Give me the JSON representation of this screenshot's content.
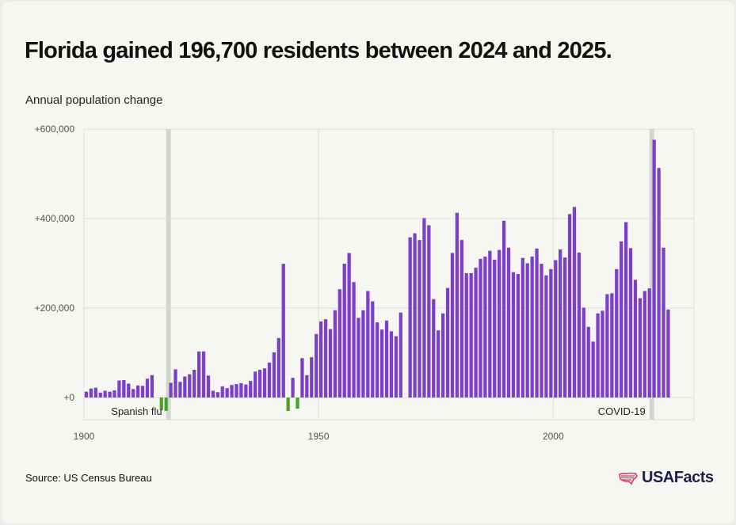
{
  "title": "Florida gained 196,700 residents between 2024 and 2025.",
  "source": "Source: US Census Bureau",
  "brand": {
    "name": "USAFacts",
    "logo_icon": "us-map-stripes-icon",
    "logo_color": "#d63a6a",
    "text_color": "#1e1e4a"
  },
  "chart_data": {
    "type": "bar",
    "title": "Florida gained 196,700 residents between 2024 and 2025.",
    "ylabel": "Annual population change",
    "xlabel": "",
    "ylim": [
      -50000,
      600000
    ],
    "xlim": [
      1900,
      2030
    ],
    "y_ticks": [
      0,
      200000,
      400000,
      600000
    ],
    "y_tick_labels": [
      "+0",
      "+200,000",
      "+400,000",
      "+600,000"
    ],
    "x_ticks": [
      1900,
      1950,
      2000
    ],
    "x_tick_labels": [
      "1900",
      "1950",
      "2000"
    ],
    "grid": true,
    "colors": {
      "positive": "#7b3fc8",
      "negative": "#4aa02c",
      "highlight_band": "#d4d4d0",
      "grid": "#dddddd"
    },
    "annotations": [
      {
        "label": "Spanish flu",
        "year": 1918
      },
      {
        "label": "COVID-19",
        "year": 2021
      }
    ],
    "years": [
      1901,
      1902,
      1903,
      1904,
      1905,
      1906,
      1907,
      1908,
      1909,
      1910,
      1911,
      1912,
      1913,
      1914,
      1915,
      1916,
      1917,
      1918,
      1919,
      1920,
      1921,
      1922,
      1923,
      1924,
      1925,
      1926,
      1927,
      1928,
      1929,
      1930,
      1931,
      1932,
      1933,
      1934,
      1935,
      1936,
      1937,
      1938,
      1939,
      1940,
      1941,
      1942,
      1943,
      1944,
      1945,
      1946,
      1947,
      1948,
      1949,
      1950,
      1951,
      1952,
      1953,
      1954,
      1955,
      1956,
      1957,
      1958,
      1959,
      1960,
      1961,
      1962,
      1963,
      1964,
      1965,
      1966,
      1967,
      1968,
      1969,
      1970,
      1971,
      1972,
      1973,
      1974,
      1975,
      1976,
      1977,
      1978,
      1979,
      1980,
      1981,
      1982,
      1983,
      1984,
      1985,
      1986,
      1987,
      1988,
      1989,
      1990,
      1991,
      1992,
      1993,
      1994,
      1995,
      1996,
      1997,
      1998,
      1999,
      2000,
      2001,
      2002,
      2003,
      2004,
      2005,
      2006,
      2007,
      2008,
      2009,
      2010,
      2011,
      2012,
      2013,
      2014,
      2015,
      2016,
      2017,
      2018,
      2019,
      2020,
      2021,
      2022,
      2023,
      2024,
      2025
    ],
    "values": [
      13000,
      20000,
      22000,
      11000,
      15000,
      13000,
      16000,
      38000,
      39000,
      31000,
      19000,
      27000,
      26000,
      42000,
      50000,
      0,
      -28000,
      -30000,
      33000,
      63000,
      35000,
      47000,
      52000,
      62000,
      103000,
      103000,
      49000,
      15000,
      12000,
      25000,
      21000,
      28000,
      30000,
      32000,
      29000,
      37000,
      58000,
      62000,
      65000,
      78000,
      101000,
      133000,
      299000,
      -30000,
      44000,
      -25000,
      88000,
      50000,
      90000,
      142000,
      170000,
      175000,
      153000,
      195000,
      242000,
      299000,
      323000,
      258000,
      178000,
      195000,
      238000,
      215000,
      168000,
      152000,
      172000,
      148000,
      137000,
      190000,
      null,
      358000,
      367000,
      352000,
      401000,
      385000,
      220000,
      150000,
      188000,
      245000,
      323000,
      413000,
      352000,
      278000,
      278000,
      290000,
      310000,
      315000,
      328000,
      308000,
      330000,
      395000,
      335000,
      280000,
      276000,
      312000,
      300000,
      315000,
      333000,
      299000,
      273000,
      287000,
      307000,
      331000,
      313000,
      410000,
      426000,
      324000,
      201000,
      158000,
      125000,
      188000,
      194000,
      231000,
      233000,
      287000,
      349000,
      392000,
      334000,
      263000,
      222000,
      238000,
      244000,
      576000,
      513000,
      335000,
      196700
    ]
  }
}
